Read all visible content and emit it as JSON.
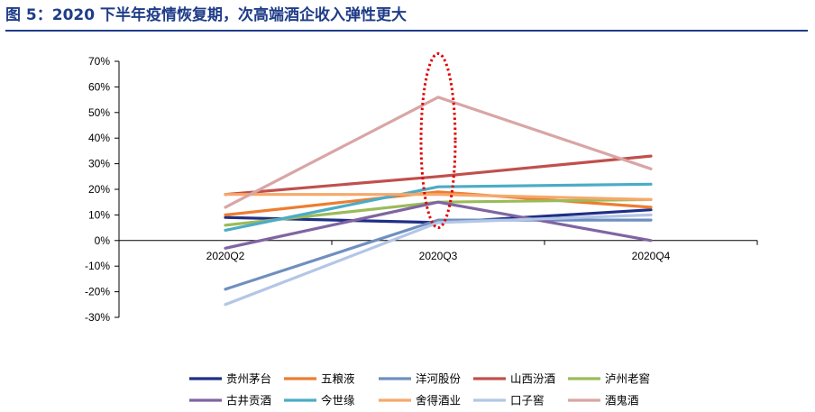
{
  "title": "图 5：2020 下半年疫情恢复期，次高端酒企收入弹性更大",
  "chart_data": {
    "type": "line",
    "categories": [
      "2020Q2",
      "2020Q3",
      "2020Q4"
    ],
    "ylim": [
      -30,
      70
    ],
    "yticks": [
      -30,
      -20,
      -10,
      0,
      10,
      20,
      30,
      40,
      50,
      60,
      70
    ],
    "ytick_labels": [
      "-30%",
      "-20%",
      "-10%",
      "0%",
      "10%",
      "20%",
      "30%",
      "40%",
      "50%",
      "60%",
      "70%"
    ],
    "grid": false,
    "legend_position": "bottom",
    "highlight": {
      "category": "2020Q3",
      "shape": "dotted-ellipse",
      "color": "#e00000"
    },
    "series": [
      {
        "name": "贵州茅台",
        "color": "#1f2f86",
        "values": [
          9,
          7,
          12
        ]
      },
      {
        "name": "五粮液",
        "color": "#ed7d31",
        "values": [
          10,
          19,
          13
        ]
      },
      {
        "name": "洋河股份",
        "color": "#6f8fbf",
        "values": [
          -19,
          8,
          8
        ]
      },
      {
        "name": "山西汾酒",
        "color": "#c0504d",
        "values": [
          18,
          25,
          33
        ]
      },
      {
        "name": "泸州老窖",
        "color": "#9bbb59",
        "values": [
          6,
          15,
          16
        ]
      },
      {
        "name": "古井贡酒",
        "color": "#8064a2",
        "values": [
          -3,
          15,
          0
        ]
      },
      {
        "name": "今世缘",
        "color": "#4bacc6",
        "values": [
          4,
          21,
          22
        ]
      },
      {
        "name": "舍得酒业",
        "color": "#f6a86a",
        "values": [
          18,
          18,
          16
        ]
      },
      {
        "name": "口子窖",
        "color": "#b4c6e7",
        "values": [
          -25,
          7,
          10
        ]
      },
      {
        "name": "酒鬼酒",
        "color": "#d9a5a5",
        "values": [
          13,
          56,
          28
        ]
      }
    ]
  }
}
